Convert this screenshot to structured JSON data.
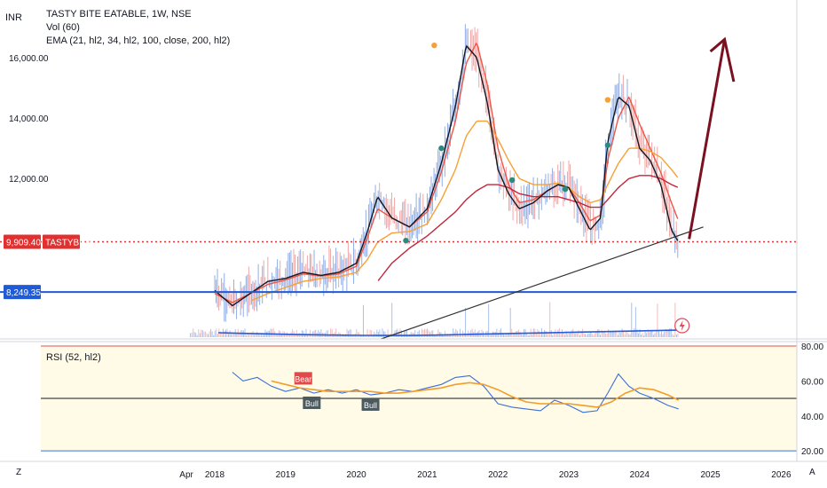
{
  "header": {
    "currency": "INR",
    "symbol_line": "TASTY BITE EATABLE, 1W, NSE",
    "vol_line": "Vol (60)",
    "ema_line": "EMA (21, hl2, 34, hl2, 100, close, 200, hl2)"
  },
  "rsi_panel": {
    "label": "RSI (52, hl2)"
  },
  "price_badges": {
    "current_price": "9,909.40",
    "ticker": "TASTYBITE",
    "support_price": "8,249.35"
  },
  "signal_labels": {
    "bear": "Bear",
    "bull1": "Bull",
    "bull2": "Bull"
  },
  "bottom_bar": {
    "left_button": "Z",
    "right_button": "A"
  },
  "colors": {
    "bull_candle": "#90aee6",
    "bear_candle": "#f0a7a7",
    "ema21": "#131722",
    "ema34": "#f05545",
    "ema100": "#f7a035",
    "ema200": "#c2263a",
    "support_line": "#1f5bd6",
    "price_line": "#e0302f",
    "arrow": "#7a1020",
    "rsi_line": "#3a6fd8",
    "rsi_ma": "#f39c2b",
    "rsi_band": "#fffbe6"
  },
  "chart_data": {
    "type": "line",
    "title": "TASTY BITE EATABLE, 1W, NSE",
    "xlabel": "",
    "ylabel": "",
    "x_ticks": [
      "Apr",
      "2018",
      "2019",
      "2020",
      "2021",
      "2022",
      "2023",
      "2024",
      "2025",
      "2026"
    ],
    "y_ticks": [
      "12,000.00",
      "14,000.00",
      "16,000.00"
    ],
    "ylim": [
      6700,
      17900
    ],
    "rsi_ticks": [
      "20.00",
      "40.00",
      "60.00",
      "80.00"
    ],
    "rsi_ylim": [
      14,
      82
    ],
    "rsi_levels": [
      80,
      50,
      20
    ],
    "x": [
      2018.0,
      2018.25,
      2018.5,
      2018.75,
      2019.0,
      2019.25,
      2019.5,
      2019.75,
      2020.0,
      2020.15,
      2020.3,
      2020.5,
      2020.75,
      2021.0,
      2021.2,
      2021.4,
      2021.55,
      2021.7,
      2021.85,
      2022.0,
      2022.15,
      2022.3,
      2022.5,
      2022.7,
      2022.85,
      2023.0,
      2023.15,
      2023.3,
      2023.45,
      2023.55,
      2023.7,
      2023.85,
      2024.0,
      2024.15,
      2024.3,
      2024.45,
      2024.55
    ],
    "series": [
      {
        "values": [
          8300,
          7800,
          8200,
          8600,
          8700,
          8900,
          8800,
          8900,
          9200,
          10200,
          11400,
          10700,
          10400,
          11000,
          12500,
          14400,
          16400,
          16000,
          14500,
          12300,
          11500,
          11000,
          11200,
          11600,
          11800,
          11700,
          11000,
          10300,
          10700,
          13200,
          14700,
          14400,
          13000,
          12600,
          11800,
          10300,
          9900
        ]
      },
      {
        "values": [
          8200,
          7900,
          8200,
          8500,
          8650,
          8850,
          8780,
          8850,
          9100,
          10000,
          11000,
          10700,
          10400,
          10900,
          12200,
          13900,
          15800,
          16500,
          15100,
          13000,
          11800,
          11200,
          11300,
          11600,
          11800,
          11700,
          11200,
          10600,
          10800,
          12600,
          14000,
          14700,
          13800,
          13000,
          12200,
          11200,
          10600
        ]
      },
      {
        "values": [
          null,
          null,
          7950,
          8200,
          8400,
          8600,
          8700,
          8750,
          8900,
          9300,
          9900,
          10200,
          10250,
          10500,
          11300,
          12300,
          13400,
          13900,
          13900,
          13300,
          12600,
          12000,
          11800,
          11800,
          11850,
          11700,
          11400,
          11200,
          11300,
          11800,
          12500,
          13000,
          13000,
          12900,
          12700,
          12300,
          12000
        ]
      },
      {
        "values": [
          null,
          null,
          null,
          null,
          null,
          null,
          null,
          null,
          null,
          null,
          8600,
          9200,
          9700,
          10100,
          10500,
          10900,
          11300,
          11600,
          11800,
          11800,
          11700,
          11500,
          11400,
          11400,
          11400,
          11300,
          11200,
          11050,
          11050,
          11300,
          11700,
          12000,
          12100,
          12100,
          12000,
          11800,
          11700
        ]
      }
    ],
    "volume_line": [
      2018.05,
      2024.55
    ],
    "trendline": {
      "x": [
        2020.35,
        2024.9
      ],
      "y": [
        6700,
        10400
      ]
    },
    "support_level": 8249.35,
    "current_level": 9909.4,
    "rsi": {
      "x": [
        2018.25,
        2018.4,
        2018.6,
        2018.8,
        2019.0,
        2019.2,
        2019.4,
        2019.6,
        2019.8,
        2020.0,
        2020.2,
        2020.4,
        2020.6,
        2020.8,
        2021.0,
        2021.2,
        2021.4,
        2021.6,
        2021.8,
        2022.0,
        2022.2,
        2022.4,
        2022.6,
        2022.8,
        2023.0,
        2023.2,
        2023.4,
        2023.55,
        2023.7,
        2023.85,
        2024.0,
        2024.2,
        2024.4,
        2024.55
      ],
      "values": [
        65,
        60,
        62,
        57,
        54,
        56,
        53,
        55,
        53,
        55,
        52,
        53,
        55,
        54,
        56,
        58,
        62,
        63,
        57,
        47,
        45,
        44,
        43,
        49,
        46,
        42,
        43,
        53,
        64,
        57,
        53,
        50,
        46,
        44
      ]
    },
    "rsi_ma": {
      "x": [
        2018.8,
        2019.0,
        2019.2,
        2019.4,
        2019.6,
        2019.8,
        2020.0,
        2020.2,
        2020.4,
        2020.6,
        2020.8,
        2021.0,
        2021.2,
        2021.4,
        2021.6,
        2021.8,
        2022.0,
        2022.2,
        2022.4,
        2022.6,
        2022.8,
        2023.0,
        2023.2,
        2023.4,
        2023.6,
        2023.8,
        2024.0,
        2024.2,
        2024.4,
        2024.55
      ],
      "values": [
        60,
        58,
        56,
        55,
        54,
        54,
        54,
        54,
        53,
        53,
        54,
        55,
        56,
        58,
        59,
        58,
        55,
        51,
        48,
        47,
        47,
        47,
        46,
        45,
        48,
        53,
        56,
        55,
        52,
        49
      ]
    }
  }
}
